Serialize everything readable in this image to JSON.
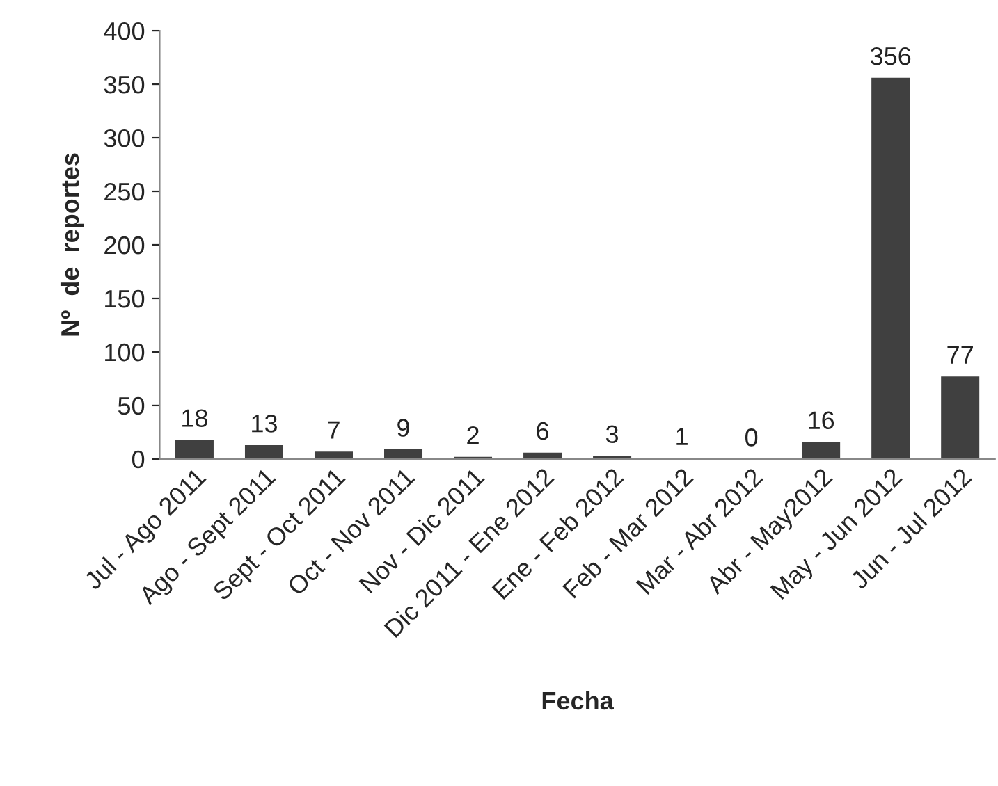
{
  "chart_data": {
    "type": "bar",
    "categories": [
      "Jul - Ago 2011",
      "Ago - Sept 2011",
      "Sept - Oct 2011",
      "Oct - Nov 2011",
      "Nov - Dic 2011",
      "Dic 2011 - Ene 2012",
      "Ene - Feb 2012",
      "Feb - Mar 2012",
      "Mar - Abr 2012",
      "Abr - May2012",
      "May - Jun 2012",
      "Jun - Jul 2012"
    ],
    "values": [
      18,
      13,
      7,
      9,
      2,
      6,
      3,
      1,
      0,
      16,
      356,
      77
    ],
    "color": "#404040",
    "xlabel": "Fecha",
    "ylabel": "Nº  de  reportes",
    "ylim": [
      0,
      400
    ],
    "yticks": [
      0,
      50,
      100,
      150,
      200,
      250,
      300,
      350,
      400
    ],
    "data_labels": true,
    "grid": false,
    "legend": false
  }
}
